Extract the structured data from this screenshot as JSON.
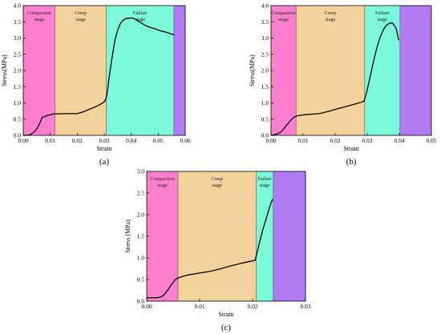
{
  "chart_data": [
    {
      "panel": "a",
      "caption": "(a)",
      "type": "line",
      "xlabel": "Strain",
      "ylabel": "Stress(MPa)",
      "xlim": [
        0,
        0.06
      ],
      "ylim": [
        0,
        4.0
      ],
      "xticks": [
        0.0,
        0.01,
        0.02,
        0.03,
        0.04,
        0.05,
        0.06
      ],
      "xtick_labels": [
        "0.00",
        "0.01",
        "0.02",
        "0.03",
        "0.04",
        "0.05",
        "0.06"
      ],
      "yticks": [
        0,
        0.5,
        1.0,
        1.5,
        2.0,
        2.5,
        3.0,
        3.5,
        4.0
      ],
      "ytick_labels": [
        "0.0",
        "0.5",
        "1.0",
        "1.5",
        "2.0",
        "2.5",
        "3.0",
        "3.5",
        "4.0"
      ],
      "stages": [
        {
          "name": [
            "Compaction",
            "stage"
          ],
          "from": 0.0,
          "to": 0.0118,
          "color": "#fd7fcd"
        },
        {
          "name": [
            "Creep",
            "stage"
          ],
          "from": 0.0118,
          "to": 0.0308,
          "color": "#f4d29c"
        },
        {
          "name": [
            "Failure",
            "stage"
          ],
          "from": 0.0308,
          "to": 0.0558,
          "color": "#7bf9d8"
        },
        {
          "name": [],
          "from": 0.0558,
          "to": 0.06,
          "color": "#b07af2"
        }
      ],
      "series": [
        {
          "x": [
            0.0,
            0.001,
            0.002,
            0.003,
            0.004,
            0.005,
            0.006,
            0.007,
            0.008,
            0.009,
            0.01,
            0.011,
            0.012,
            0.015,
            0.02,
            0.022,
            0.025,
            0.028,
            0.03,
            0.0305,
            0.031,
            0.032,
            0.033,
            0.034,
            0.035,
            0.036,
            0.037,
            0.038,
            0.039,
            0.04,
            0.041,
            0.042,
            0.043,
            0.045,
            0.047,
            0.049,
            0.051,
            0.053,
            0.055,
            0.056
          ],
          "y": [
            0.0,
            0.0,
            0.01,
            0.04,
            0.1,
            0.2,
            0.35,
            0.55,
            0.58,
            0.62,
            0.63,
            0.66,
            0.66,
            0.67,
            0.67,
            0.72,
            0.82,
            0.93,
            1.03,
            1.1,
            1.25,
            1.9,
            2.45,
            2.95,
            3.25,
            3.45,
            3.55,
            3.6,
            3.61,
            3.62,
            3.6,
            3.56,
            3.5,
            3.4,
            3.33,
            3.28,
            3.22,
            3.18,
            3.12,
            3.1
          ],
          "color": "#000000"
        }
      ]
    },
    {
      "panel": "b",
      "caption": "(b)",
      "type": "line",
      "xlabel": "Strain",
      "ylabel": "Stress(MPa)",
      "xlim": [
        0,
        0.05
      ],
      "ylim": [
        0,
        4.0
      ],
      "xticks": [
        0.0,
        0.01,
        0.02,
        0.03,
        0.04,
        0.05
      ],
      "xtick_labels": [
        "0.00",
        "0.01",
        "0.02",
        "0.03",
        "0.04",
        "0.05"
      ],
      "yticks": [
        0,
        0.5,
        1.0,
        1.5,
        2.0,
        2.5,
        3.0,
        3.5,
        4.0
      ],
      "ytick_labels": [
        "0.0",
        "0.5",
        "1.0",
        "1.5",
        "2.0",
        "2.5",
        "3.0",
        "3.5",
        "4.0"
      ],
      "stages": [
        {
          "name": [
            "Compaction",
            "stage"
          ],
          "from": 0.0,
          "to": 0.0078,
          "color": "#fd7fcd"
        },
        {
          "name": [
            "Creep",
            "stage"
          ],
          "from": 0.0078,
          "to": 0.0292,
          "color": "#f4d29c"
        },
        {
          "name": [
            "Failure",
            "stage"
          ],
          "from": 0.0292,
          "to": 0.0402,
          "color": "#7bf9d8"
        },
        {
          "name": [],
          "from": 0.0402,
          "to": 0.05,
          "color": "#b07af2"
        }
      ],
      "series": [
        {
          "x": [
            0.0,
            0.001,
            0.002,
            0.003,
            0.004,
            0.005,
            0.006,
            0.007,
            0.008,
            0.01,
            0.012,
            0.015,
            0.018,
            0.02,
            0.023,
            0.026,
            0.028,
            0.029,
            0.03,
            0.031,
            0.032,
            0.033,
            0.034,
            0.035,
            0.036,
            0.037,
            0.0375,
            0.038,
            0.039,
            0.0398
          ],
          "y": [
            0.0,
            0.02,
            0.05,
            0.1,
            0.2,
            0.33,
            0.45,
            0.55,
            0.6,
            0.63,
            0.65,
            0.67,
            0.74,
            0.8,
            0.88,
            0.96,
            1.02,
            1.05,
            1.4,
            1.85,
            2.3,
            2.7,
            3.02,
            3.25,
            3.4,
            3.46,
            3.47,
            3.45,
            3.3,
            2.93
          ],
          "color": "#000000"
        }
      ]
    },
    {
      "panel": "c",
      "caption": "(c)",
      "type": "line",
      "xlabel": "Strain",
      "ylabel": "Stress (MPa)",
      "xlim": [
        0,
        0.03
      ],
      "ylim": [
        0,
        3.0
      ],
      "xticks": [
        0.0,
        0.01,
        0.02,
        0.03
      ],
      "xtick_labels": [
        "0.00",
        "0.01",
        "0.02",
        "0.03"
      ],
      "yticks": [
        0,
        0.5,
        1.0,
        1.5,
        2.0,
        2.5,
        3.0
      ],
      "ytick_labels": [
        "0.0",
        "0.5",
        "1.0",
        "1.5",
        "2.0",
        "2.5",
        "3.0"
      ],
      "stages": [
        {
          "name": [
            "Compaction",
            "stage"
          ],
          "from": 0.0,
          "to": 0.0059,
          "color": "#fd7fcd"
        },
        {
          "name": [
            "Creep",
            "stage"
          ],
          "from": 0.0059,
          "to": 0.0207,
          "color": "#f4d29c"
        },
        {
          "name": [
            "Failure",
            "stage"
          ],
          "from": 0.0207,
          "to": 0.0239,
          "color": "#7bf9d8"
        },
        {
          "name": [],
          "from": 0.0239,
          "to": 0.03,
          "color": "#b07af2"
        }
      ],
      "series": [
        {
          "x": [
            0.0,
            0.001,
            0.002,
            0.0025,
            0.003,
            0.0035,
            0.004,
            0.0045,
            0.005,
            0.0055,
            0.006,
            0.007,
            0.008,
            0.01,
            0.012,
            0.014,
            0.016,
            0.018,
            0.0195,
            0.02,
            0.0205,
            0.021,
            0.0215,
            0.022,
            0.0225,
            0.023,
            0.0235,
            0.0238
          ],
          "y": [
            0.08,
            0.08,
            0.08,
            0.09,
            0.12,
            0.18,
            0.26,
            0.35,
            0.44,
            0.51,
            0.54,
            0.58,
            0.61,
            0.65,
            0.69,
            0.75,
            0.82,
            0.88,
            0.92,
            0.93,
            0.95,
            1.2,
            1.45,
            1.68,
            1.88,
            2.08,
            2.28,
            2.36
          ],
          "color": "#000000"
        }
      ]
    }
  ]
}
